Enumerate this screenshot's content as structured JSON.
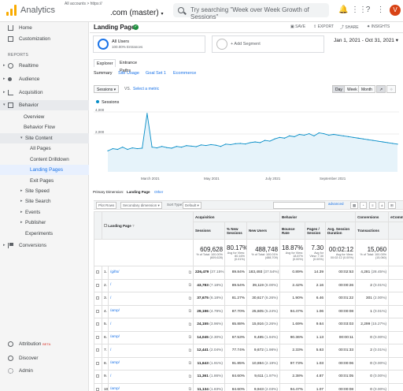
{
  "topbar": {
    "brand": "Analytics",
    "path": "All accounts > https://",
    "account": ".com (master)",
    "search_placeholder": "Try searching \"Week over Week Growth of Sessions\"",
    "avatar": "V"
  },
  "sidebar": {
    "items": [
      {
        "label": "Home",
        "icon": "home-icon"
      },
      {
        "label": "Customization",
        "icon": "customization-icon"
      }
    ],
    "reports_label": "REPORTS",
    "report_items": [
      {
        "label": "Realtime",
        "icon": "realtime-icon"
      },
      {
        "label": "Audience",
        "icon": "audience-icon"
      },
      {
        "label": "Acquisition",
        "icon": "acquisition-icon"
      },
      {
        "label": "Behavior",
        "icon": "behavior-icon"
      }
    ],
    "behavior_sub": [
      "Overview",
      "Behavior Flow"
    ],
    "site_content_label": "Site Content",
    "site_content_sub": [
      "All Pages",
      "Content Drilldown",
      "Landing Pages",
      "Exit Pages"
    ],
    "behavior_more": [
      "Site Speed",
      "Site Search",
      "Events",
      "Publisher",
      "Experiments"
    ],
    "conversions": "Conversions",
    "bottom": [
      {
        "label": "Attribution",
        "badge": "BETA",
        "icon": "attribution-icon"
      },
      {
        "label": "Discover",
        "icon": "discover-icon"
      },
      {
        "label": "Admin",
        "icon": "admin-icon"
      }
    ]
  },
  "page": {
    "title": "Landing Pages",
    "actions": [
      "SAVE",
      "EXPORT",
      "SHARE",
      "INSIGHTS"
    ],
    "segment_all": "All Users",
    "segment_all_sub": "100.00% Entrances",
    "segment_add": "+ Add Segment",
    "date_range": "Jan 1, 2021 - Oct 31, 2021",
    "tabs": [
      "Explorer",
      "Entrance Paths"
    ],
    "sublinks": [
      "Summary",
      "Site Usage",
      "Goal Set 1",
      "Ecommerce"
    ],
    "metric_select": "Sessions",
    "vs": "VS.",
    "select_metric": "Select a metric",
    "granularity": [
      "Day",
      "Week",
      "Month"
    ],
    "legend": "Sessions",
    "primary_dimension_label": "Primary Dimension:",
    "primary_dimension_value": "Landing Page",
    "primary_dimension_other": "Other",
    "plot_rows": "Plot Rows",
    "secondary_dimension": "Secondary dimension",
    "sort_type_label": "Sort Type:",
    "sort_type": "Default",
    "advanced": "advanced"
  },
  "chart_data": {
    "type": "line",
    "title": "",
    "xlabel": "",
    "ylabel": "",
    "series": [
      {
        "name": "Sessions",
        "values": [
          1400,
          1550,
          1500,
          1650,
          1500,
          1600,
          1550,
          1580,
          3900,
          1650,
          1600,
          1700,
          1620,
          1580,
          1700,
          1650,
          1750,
          1720,
          1680,
          1800,
          1760,
          1820,
          1780,
          1700,
          1850,
          1820,
          1880,
          1900,
          1860,
          1950,
          2000,
          1950,
          2100,
          2050,
          2200,
          2300,
          2250,
          2400,
          2350,
          2500,
          2450,
          2550,
          2400,
          2600,
          2550,
          2450,
          2500,
          2450,
          2400,
          2350,
          2300,
          2250,
          2200,
          2150,
          2100,
          2050,
          2000,
          1950,
          1900,
          1850
        ]
      }
    ],
    "yticks": [
      "4,000",
      "2,000"
    ],
    "ylim": [
      0,
      4000
    ],
    "xticks": [
      "March 2021",
      "May 2021",
      "July 2021",
      "September 2021"
    ]
  },
  "table": {
    "headers": {
      "landing": "Landing Page",
      "acquisition": "Acquisition",
      "behavior": "Behavior",
      "conversions": "Conversions",
      "ecommerce": "eComm"
    },
    "columns": [
      "Sessions",
      "% New Sessions",
      "New Users",
      "Bounce Rate",
      "Pages / Session",
      "Avg. Session Duration",
      "Transactions"
    ],
    "summary": [
      "609,628",
      "80.17%",
      "488,748",
      "18.87%",
      "7.30",
      "00:02:12",
      "15,060"
    ],
    "summary_sub": [
      "% of Total: 100.00% (609,628)",
      "Avg for View: 80.16% (0.01%)",
      "% of Total: 100.01% (488,709)",
      "Avg for View: 18.87% (0.00%)",
      "Avg for View: 7.30 (0.00%)",
      "Avg for View: 00:02:12 (0.00%)",
      "% of Total: 100.00% (15,060)"
    ],
    "rows": [
      {
        "n": "1.",
        "page": "/gifts/",
        "sessions": "226,479",
        "spct": "(37.15%)",
        "newpct": "89.84%",
        "newusers": "183,493",
        "nupct": "(37.54%)",
        "bounce": "0.89%",
        "pps": "14.39",
        "dur": "00:02:53",
        "trans": "4,281",
        "tpct": "(28.45%)"
      },
      {
        "n": "2.",
        "page": "/",
        "sessions": "43,783",
        "spct": "(7.18%)",
        "newpct": "89.54%",
        "newusers": "39,119",
        "nupct": "(8.00%)",
        "bounce": "2.42%",
        "pps": "2.16",
        "dur": "00:00:26",
        "trans": "2",
        "tpct": "(0.01%)"
      },
      {
        "n": "3.",
        "page": "/",
        "sessions": "37,675",
        "spct": "(6.18%)",
        "newpct": "81.27%",
        "newusers": "30,617",
        "nupct": "(6.26%)",
        "bounce": "1.90%",
        "pps": "6.46",
        "dur": "00:01:22",
        "trans": "301",
        "tpct": "(2.00%)"
      },
      {
        "n": "4.",
        "page": "/amp/",
        "sessions": "29,196",
        "spct": "(4.79%)",
        "newpct": "87.70%",
        "newusers": "25,605",
        "nupct": "(5.24%)",
        "bounce": "94.47%",
        "pps": "1.06",
        "dur": "00:00:08",
        "trans": "1",
        "tpct": "(0.01%)"
      },
      {
        "n": "5.",
        "page": "/",
        "sessions": "24,155",
        "spct": "(3.96%)",
        "newpct": "65.88%",
        "newusers": "15,916",
        "nupct": "(3.26%)",
        "bounce": "1.69%",
        "pps": "9.64",
        "dur": "00:03:03",
        "trans": "2,299",
        "tpct": "(15.27%)"
      },
      {
        "n": "6.",
        "page": "/amp/",
        "sessions": "14,045",
        "spct": "(2.30%)",
        "newpct": "67.53%",
        "newusers": "9,485",
        "nupct": "(1.94%)",
        "bounce": "90.36%",
        "pps": "1.13",
        "dur": "00:00:11",
        "trans": "0",
        "tpct": "(0.00%)"
      },
      {
        "n": "7.",
        "page": "/",
        "sessions": "12,441",
        "spct": "(2.04%)",
        "newpct": "77.74%",
        "newusers": "9,672",
        "nupct": "(1.98%)",
        "bounce": "2.33%",
        "pps": "5.63",
        "dur": "00:01:33",
        "trans": "2",
        "tpct": "(0.01%)"
      },
      {
        "n": "8.",
        "page": "/amp/",
        "sessions": "11,643",
        "spct": "(1.91%)",
        "newpct": "91.85%",
        "newusers": "10,694",
        "nupct": "(2.19%)",
        "bounce": "97.73%",
        "pps": "1.03",
        "dur": "00:00:06",
        "trans": "0",
        "tpct": "(0.00%)"
      },
      {
        "n": "9.",
        "page": "/",
        "sessions": "11,361",
        "spct": "(1.86%)",
        "newpct": "84.60%",
        "newusers": "9,611",
        "nupct": "(1.97%)",
        "bounce": "2.38%",
        "pps": "4.87",
        "dur": "00:01:05",
        "trans": "0",
        "tpct": "(0.00%)"
      },
      {
        "n": "10.",
        "page": "/amp/",
        "sessions": "11,134",
        "spct": "(1.83%)",
        "newpct": "84.60%",
        "newusers": "9,943",
        "nupct": "(2.03%)",
        "bounce": "94.47%",
        "pps": "1.07",
        "dur": "00:00:08",
        "trans": "0",
        "tpct": "(0.00%)"
      }
    ]
  }
}
